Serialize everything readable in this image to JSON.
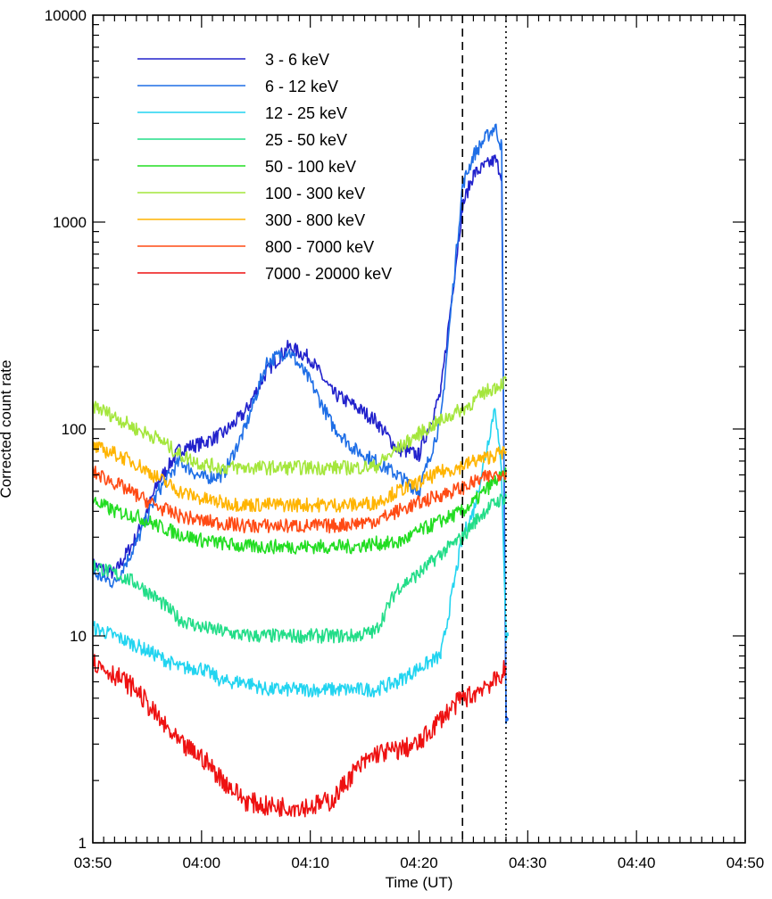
{
  "chart_data": {
    "type": "line",
    "xlabel": "Time (UT)",
    "ylabel": "Corrected count rate",
    "y_scale": "log",
    "ylim": [
      1,
      10000
    ],
    "xlim": [
      "03:50",
      "04:50"
    ],
    "x_ticks": [
      "03:50",
      "04:00",
      "04:10",
      "04:20",
      "04:30",
      "04:40",
      "04:50"
    ],
    "y_ticks": [
      "1",
      "10",
      "100",
      "1000",
      "10000"
    ],
    "grid": false,
    "legend_position": "top-left",
    "vlines": [
      {
        "time": "04:24",
        "style": "dashed"
      },
      {
        "time": "04:28",
        "style": "dotted"
      }
    ],
    "series": [
      {
        "name": "3 - 6 keV",
        "color": "#2222cc",
        "points": [
          [
            "03:50",
            22
          ],
          [
            "03:52",
            20
          ],
          [
            "03:54",
            30
          ],
          [
            "03:56",
            55
          ],
          [
            "03:58",
            80
          ],
          [
            "04:00",
            85
          ],
          [
            "04:02",
            95
          ],
          [
            "04:04",
            120
          ],
          [
            "04:06",
            190
          ],
          [
            "04:08",
            250
          ],
          [
            "04:10",
            220
          ],
          [
            "04:12",
            150
          ],
          [
            "04:14",
            130
          ],
          [
            "04:16",
            110
          ],
          [
            "04:18",
            80
          ],
          [
            "04:20",
            75
          ],
          [
            "04:22",
            150
          ],
          [
            "04:24",
            1200
          ],
          [
            "04:25",
            1700
          ],
          [
            "04:26",
            1850
          ],
          [
            "04:27",
            2000
          ],
          [
            "04:27.6",
            1700
          ],
          [
            "04:28",
            4
          ],
          [
            "04:28.2",
            4
          ]
        ]
      },
      {
        "name": "6 - 12 keV",
        "color": "#1e6ee6",
        "points": [
          [
            "03:50",
            20
          ],
          [
            "03:52",
            18
          ],
          [
            "03:54",
            28
          ],
          [
            "03:56",
            50
          ],
          [
            "03:58",
            70
          ],
          [
            "04:00",
            58
          ],
          [
            "04:02",
            60
          ],
          [
            "04:04",
            100
          ],
          [
            "04:06",
            210
          ],
          [
            "04:08",
            240
          ],
          [
            "04:10",
            170
          ],
          [
            "04:12",
            105
          ],
          [
            "04:14",
            80
          ],
          [
            "04:16",
            70
          ],
          [
            "04:18",
            60
          ],
          [
            "04:20",
            50
          ],
          [
            "04:22",
            110
          ],
          [
            "04:24",
            1500
          ],
          [
            "04:25",
            2100
          ],
          [
            "04:26",
            2500
          ],
          [
            "04:27",
            2900
          ],
          [
            "04:27.6",
            2300
          ],
          [
            "04:28",
            4
          ],
          [
            "04:28.2",
            4
          ]
        ]
      },
      {
        "name": "12 - 25 keV",
        "color": "#22d4f0",
        "points": [
          [
            "03:50",
            11
          ],
          [
            "03:52",
            10
          ],
          [
            "03:54",
            9
          ],
          [
            "03:56",
            8
          ],
          [
            "03:58",
            7
          ],
          [
            "04:00",
            7
          ],
          [
            "04:02",
            6
          ],
          [
            "04:04",
            6
          ],
          [
            "04:06",
            5.5
          ],
          [
            "04:08",
            5.5
          ],
          [
            "04:10",
            5.5
          ],
          [
            "04:12",
            5.5
          ],
          [
            "04:14",
            5.5
          ],
          [
            "04:16",
            5.5
          ],
          [
            "04:18",
            6
          ],
          [
            "04:20",
            7
          ],
          [
            "04:22",
            8
          ],
          [
            "04:24",
            30
          ],
          [
            "04:25",
            40
          ],
          [
            "04:26",
            70
          ],
          [
            "04:27",
            130
          ],
          [
            "04:27.6",
            60
          ],
          [
            "04:28",
            10
          ],
          [
            "04:28.2",
            10
          ]
        ]
      },
      {
        "name": "25 - 50 keV",
        "color": "#22dd88",
        "points": [
          [
            "03:50",
            22
          ],
          [
            "03:52",
            20
          ],
          [
            "03:54",
            18
          ],
          [
            "03:56",
            15
          ],
          [
            "03:58",
            12
          ],
          [
            "04:00",
            11
          ],
          [
            "04:02",
            10.5
          ],
          [
            "04:04",
            10
          ],
          [
            "04:06",
            10
          ],
          [
            "04:08",
            10
          ],
          [
            "04:10",
            10
          ],
          [
            "04:12",
            10
          ],
          [
            "04:14",
            10
          ],
          [
            "04:16",
            10.5
          ],
          [
            "04:18",
            17
          ],
          [
            "04:20",
            20
          ],
          [
            "04:22",
            25
          ],
          [
            "04:24",
            30
          ],
          [
            "04:25",
            35
          ],
          [
            "04:26",
            40
          ],
          [
            "04:27",
            44
          ],
          [
            "04:28",
            47
          ]
        ]
      },
      {
        "name": "50 - 100 keV",
        "color": "#22dd22",
        "points": [
          [
            "03:50",
            45
          ],
          [
            "03:52",
            40
          ],
          [
            "03:54",
            38
          ],
          [
            "03:56",
            34
          ],
          [
            "03:58",
            31
          ],
          [
            "04:00",
            29
          ],
          [
            "04:02",
            28
          ],
          [
            "04:04",
            27
          ],
          [
            "04:06",
            27
          ],
          [
            "04:08",
            27
          ],
          [
            "04:10",
            27
          ],
          [
            "04:12",
            27
          ],
          [
            "04:14",
            27
          ],
          [
            "04:16",
            28
          ],
          [
            "04:18",
            28
          ],
          [
            "04:20",
            32
          ],
          [
            "04:22",
            36
          ],
          [
            "04:24",
            40
          ],
          [
            "04:25",
            44
          ],
          [
            "04:26",
            50
          ],
          [
            "04:27",
            56
          ],
          [
            "04:28",
            60
          ]
        ]
      },
      {
        "name": "100 - 300 keV",
        "color": "#a4e63c",
        "points": [
          [
            "03:50",
            130
          ],
          [
            "03:52",
            115
          ],
          [
            "03:54",
            100
          ],
          [
            "03:56",
            90
          ],
          [
            "03:58",
            75
          ],
          [
            "04:00",
            68
          ],
          [
            "04:02",
            65
          ],
          [
            "04:04",
            65
          ],
          [
            "04:06",
            65
          ],
          [
            "04:08",
            65
          ],
          [
            "04:10",
            65
          ],
          [
            "04:12",
            65
          ],
          [
            "04:14",
            65
          ],
          [
            "04:16",
            66
          ],
          [
            "04:18",
            80
          ],
          [
            "04:20",
            95
          ],
          [
            "04:22",
            110
          ],
          [
            "04:24",
            125
          ],
          [
            "04:25",
            135
          ],
          [
            "04:26",
            150
          ],
          [
            "04:27",
            160
          ],
          [
            "04:28",
            170
          ]
        ]
      },
      {
        "name": "300 - 800 keV",
        "color": "#ffb400",
        "points": [
          [
            "03:50",
            82
          ],
          [
            "03:52",
            76
          ],
          [
            "03:54",
            68
          ],
          [
            "03:56",
            58
          ],
          [
            "03:58",
            50
          ],
          [
            "04:00",
            46
          ],
          [
            "04:02",
            44
          ],
          [
            "04:04",
            43
          ],
          [
            "04:06",
            43
          ],
          [
            "04:08",
            43
          ],
          [
            "04:10",
            43
          ],
          [
            "04:12",
            43
          ],
          [
            "04:14",
            43
          ],
          [
            "04:16",
            44
          ],
          [
            "04:18",
            50
          ],
          [
            "04:20",
            55
          ],
          [
            "04:22",
            62
          ],
          [
            "04:24",
            66
          ],
          [
            "04:25",
            70
          ],
          [
            "04:26",
            72
          ],
          [
            "04:27",
            75
          ],
          [
            "04:28",
            78
          ]
        ]
      },
      {
        "name": "800 - 7000 keV",
        "color": "#ff4a14",
        "points": [
          [
            "03:50",
            62
          ],
          [
            "03:52",
            55
          ],
          [
            "03:54",
            48
          ],
          [
            "03:56",
            42
          ],
          [
            "03:58",
            38
          ],
          [
            "04:00",
            36
          ],
          [
            "04:02",
            35
          ],
          [
            "04:04",
            34
          ],
          [
            "04:06",
            34
          ],
          [
            "04:08",
            34
          ],
          [
            "04:10",
            34
          ],
          [
            "04:12",
            34
          ],
          [
            "04:14",
            35
          ],
          [
            "04:16",
            36
          ],
          [
            "04:18",
            40
          ],
          [
            "04:20",
            44
          ],
          [
            "04:22",
            48
          ],
          [
            "04:24",
            52
          ],
          [
            "04:25",
            55
          ],
          [
            "04:26",
            58
          ],
          [
            "04:27",
            60
          ],
          [
            "04:28",
            62
          ]
        ]
      },
      {
        "name": "7000 - 20000 keV",
        "color": "#ee1111",
        "points": [
          [
            "03:50",
            7.5
          ],
          [
            "03:52",
            6.5
          ],
          [
            "03:54",
            5.5
          ],
          [
            "03:56",
            4
          ],
          [
            "03:58",
            3
          ],
          [
            "04:00",
            2.6
          ],
          [
            "04:02",
            2
          ],
          [
            "04:04",
            1.6
          ],
          [
            "04:06",
            1.5
          ],
          [
            "04:08",
            1.5
          ],
          [
            "04:10",
            1.5
          ],
          [
            "04:12",
            1.6
          ],
          [
            "04:14",
            2.2
          ],
          [
            "04:16",
            2.7
          ],
          [
            "04:18",
            2.8
          ],
          [
            "04:20",
            3
          ],
          [
            "04:22",
            4
          ],
          [
            "04:24",
            5
          ],
          [
            "04:25",
            5.2
          ],
          [
            "04:26",
            5.8
          ],
          [
            "04:27",
            6
          ],
          [
            "04:28",
            7
          ]
        ]
      }
    ]
  }
}
